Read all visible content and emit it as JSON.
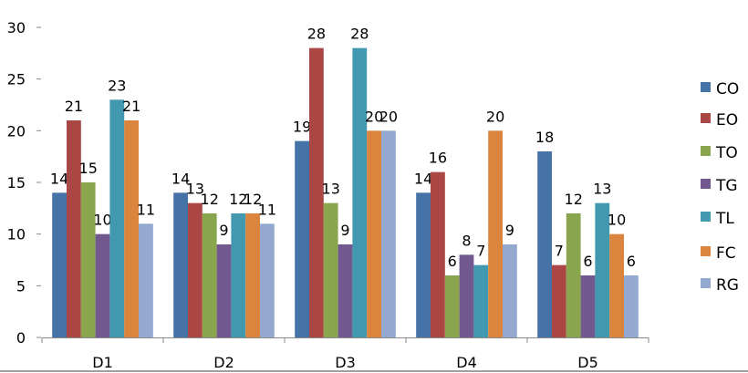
{
  "chart_data": {
    "type": "bar",
    "title": "",
    "xlabel": "",
    "ylabel": "",
    "ylim": [
      0,
      30
    ],
    "yticks": [
      0,
      5,
      10,
      15,
      20,
      25,
      30
    ],
    "grid": false,
    "legend_position": "right",
    "categories": [
      "D1",
      "D2",
      "D3",
      "D4",
      "D5"
    ],
    "series": [
      {
        "name": "CO",
        "color": "#4572A7",
        "values": [
          14,
          14,
          19,
          14,
          18
        ]
      },
      {
        "name": "EO",
        "color": "#AA4643",
        "values": [
          21,
          13,
          28,
          16,
          7
        ]
      },
      {
        "name": "TO",
        "color": "#89A54E",
        "values": [
          15,
          12,
          13,
          6,
          12
        ]
      },
      {
        "name": "TG",
        "color": "#71588F",
        "values": [
          10,
          9,
          9,
          8,
          6
        ]
      },
      {
        "name": "TL",
        "color": "#4198AF",
        "values": [
          23,
          12,
          28,
          7,
          13
        ]
      },
      {
        "name": "FC",
        "color": "#DB843D",
        "values": [
          21,
          12,
          20,
          20,
          10
        ]
      },
      {
        "name": "RG",
        "color": "#93A9CF",
        "values": [
          11,
          11,
          20,
          9,
          6
        ]
      }
    ]
  }
}
